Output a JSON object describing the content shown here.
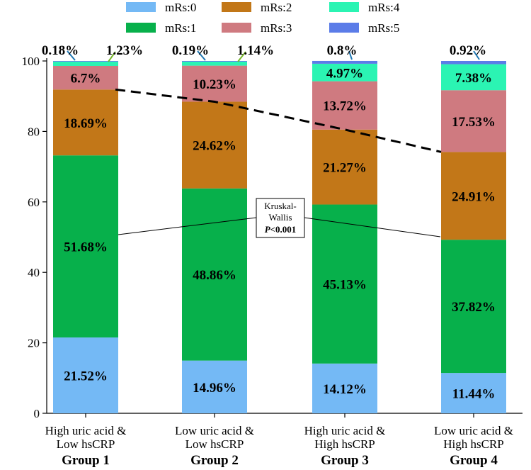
{
  "chart_data": {
    "type": "bar",
    "stacked": true,
    "categories": [
      "Group 1",
      "Group 2",
      "Group 3",
      "Group 4"
    ],
    "category_sublabels": [
      [
        "High uric acid &",
        "Low hsCRP"
      ],
      [
        "Low uric acid &",
        "Low hsCRP"
      ],
      [
        "High uric acid &",
        "High hsCRP"
      ],
      [
        "Low uric acid &",
        "High hsCRP"
      ]
    ],
    "series": [
      {
        "name": "mRs:0",
        "color": "#74b9f5",
        "values": [
          21.52,
          14.96,
          14.12,
          11.44
        ],
        "labels": [
          "21.52%",
          "14.96%",
          "14.12%",
          "11.44%"
        ]
      },
      {
        "name": "mRs:1",
        "color": "#07b04b",
        "values": [
          51.68,
          48.86,
          45.13,
          37.82
        ],
        "labels": [
          "51.68%",
          "48.86%",
          "45.13%",
          "37.82%"
        ]
      },
      {
        "name": "mRs:2",
        "color": "#c27718",
        "values": [
          18.69,
          24.62,
          21.27,
          24.91
        ],
        "labels": [
          "18.69%",
          "24.62%",
          "21.27%",
          "24.91%"
        ]
      },
      {
        "name": "mRs:3",
        "color": "#cf7a80",
        "values": [
          6.7,
          10.23,
          13.72,
          17.53
        ],
        "labels": [
          "6.7%",
          "10.23%",
          "13.72%",
          "17.53%"
        ]
      },
      {
        "name": "mRs:4",
        "color": "#2bf4b3",
        "values": [
          1.23,
          1.14,
          4.97,
          7.38
        ],
        "labels": [
          "1.23%",
          "1.14%",
          "4.97%",
          "7.38%"
        ]
      },
      {
        "name": "mRs:5",
        "color": "#5b7ce8",
        "values": [
          0.18,
          0.19,
          0.8,
          0.92
        ],
        "labels": [
          "0.18%",
          "0.19%",
          "0.8%",
          "0.92%"
        ]
      }
    ],
    "ylim": [
      0,
      100
    ],
    "yticks": [
      0,
      20,
      40,
      60,
      80,
      100
    ],
    "xlabel": "",
    "ylabel": "",
    "legend": {
      "position": "top",
      "order": [
        "mRs:0",
        "mRs:2",
        "mRs:4",
        "mRs:1",
        "mRs:3",
        "mRs:5"
      ]
    },
    "annotation": {
      "line1": "Kruskal-",
      "line2": "Wallis",
      "p_italic": "P",
      "p_rest": "<0.001"
    },
    "dashed_trend_boundary": "top of mRs:2 (cumulative mRs 0-2)"
  }
}
